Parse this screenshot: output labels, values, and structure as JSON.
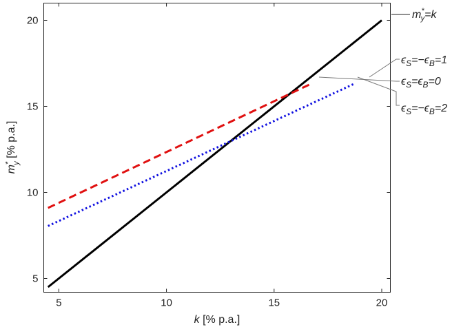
{
  "chart_data": {
    "type": "line",
    "title": "",
    "xlabel_var": "k",
    "xlabel_unit": " [% p.a.]",
    "ylabel_var": "m",
    "ylabel_sup": "*",
    "ylabel_sub": "y",
    "ylabel_unit": " [% p.a.]",
    "xlim": [
      4.3,
      20.4
    ],
    "ylim": [
      4.2,
      21.0
    ],
    "xticks": [
      5,
      10,
      15,
      20
    ],
    "yticks": [
      5,
      10,
      15,
      20
    ],
    "grid": false,
    "series": [
      {
        "label_main": "m",
        "label_sup": "*",
        "label_sub": "y",
        "label_rest": "=k",
        "color": "#000000",
        "dash": "solid",
        "x": [
          4.5,
          20
        ],
        "y": [
          4.5,
          20
        ]
      },
      {
        "label_main": "ϵ",
        "label_sub": "S",
        "label_rest": "=−ϵ",
        "label_sub2": "B",
        "label_rest2": "=1",
        "color": "#e01010",
        "dash": "dashed",
        "x": [
          4.5,
          16.7
        ],
        "y": [
          9.1,
          16.3
        ]
      },
      {
        "label_main": "ϵ",
        "label_sub": "S",
        "label_rest": "=ϵ",
        "label_sub2": "B",
        "label_rest2": "=0",
        "color": "#555555",
        "dash": "none",
        "x": [],
        "y": []
      },
      {
        "label_main": "ϵ",
        "label_sub": "S",
        "label_rest": "=−ϵ",
        "label_sub2": "B",
        "label_rest2": "=2",
        "color": "#1010e0",
        "dash": "dotted",
        "x": [
          4.5,
          18.7
        ],
        "y": [
          8.05,
          16.3
        ]
      }
    ]
  }
}
